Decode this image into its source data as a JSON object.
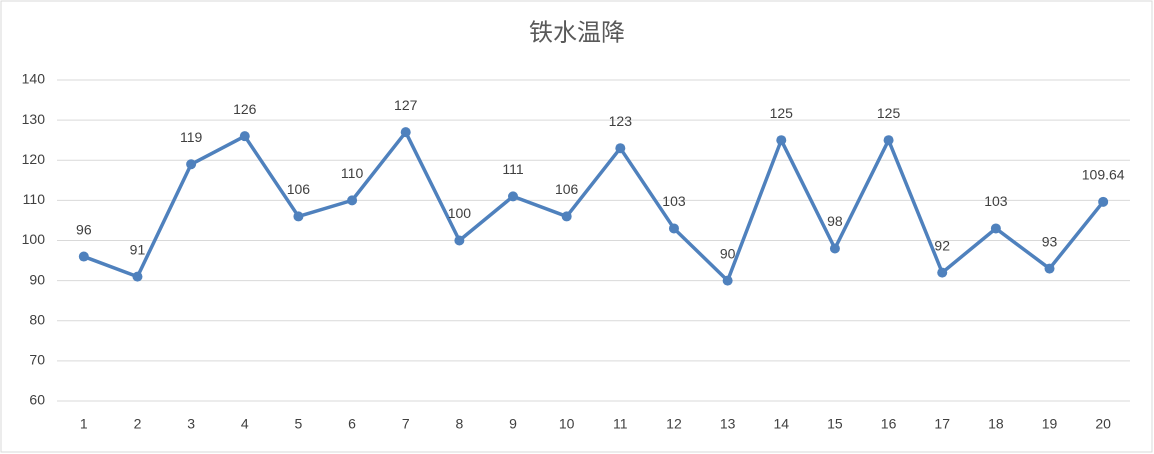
{
  "chart_data": {
    "type": "line",
    "title": "铁水温降",
    "categories": [
      "1",
      "2",
      "3",
      "4",
      "5",
      "6",
      "7",
      "8",
      "9",
      "10",
      "11",
      "12",
      "13",
      "14",
      "15",
      "16",
      "17",
      "18",
      "19",
      "20"
    ],
    "values": [
      96,
      91,
      119,
      126,
      106,
      110,
      127,
      100,
      111,
      106,
      123,
      103,
      90,
      125,
      98,
      125,
      92,
      103,
      93,
      109.64
    ],
    "color": "#4f81bd",
    "ylim": [
      60,
      140
    ],
    "yticks": [
      60,
      70,
      80,
      90,
      100,
      110,
      120,
      130,
      140
    ],
    "grid": true
  }
}
